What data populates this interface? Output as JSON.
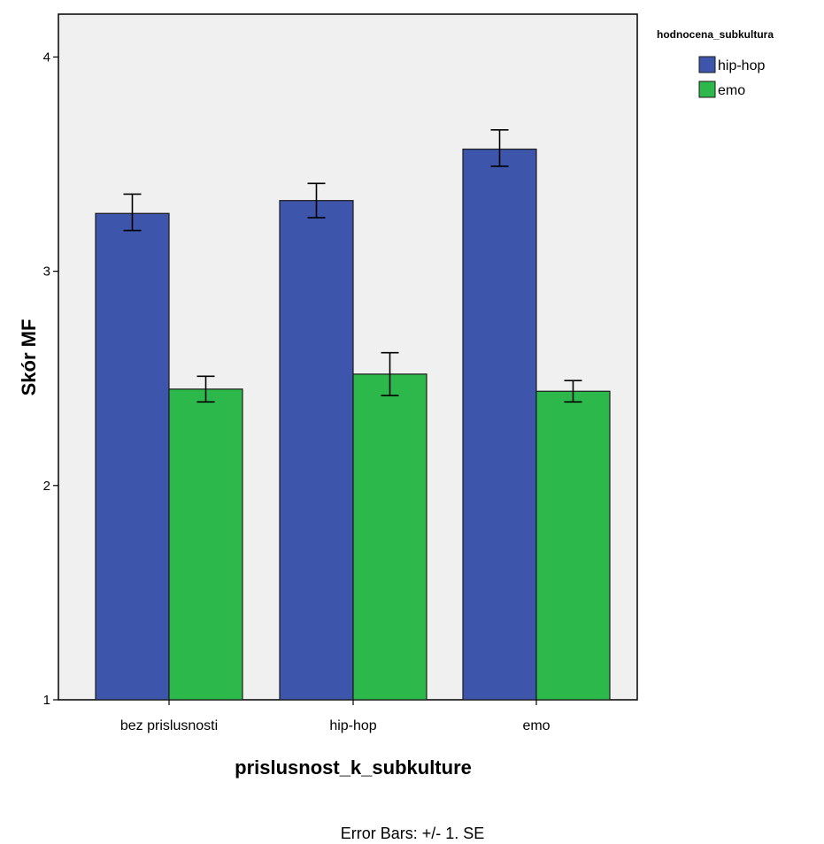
{
  "chart_data": {
    "type": "bar",
    "xlabel": "prislusnost_k_subkulture",
    "ylabel": "Skór MF",
    "ylim": [
      1,
      4.2
    ],
    "yticks": [
      "1",
      "2",
      "3",
      "4"
    ],
    "categories": [
      "bez prislusnosti",
      "hip-hop",
      "emo"
    ],
    "legend_title": "hodnocena_subkultura",
    "legend_position": "top-right",
    "grid": false,
    "series": [
      {
        "name": "hip-hop",
        "color": "#3d56ab",
        "values": [
          3.27,
          3.33,
          3.57
        ],
        "err_low": [
          3.19,
          3.25,
          3.49
        ],
        "err_high": [
          3.36,
          3.41,
          3.66
        ]
      },
      {
        "name": "emo",
        "color": "#2db84b",
        "values": [
          2.45,
          2.52,
          2.44
        ],
        "err_low": [
          2.39,
          2.42,
          2.39
        ],
        "err_high": [
          2.51,
          2.62,
          2.49
        ]
      }
    ],
    "plot_background": "#f0f0f0",
    "footnote": "Error Bars: +/- 1. SE"
  }
}
